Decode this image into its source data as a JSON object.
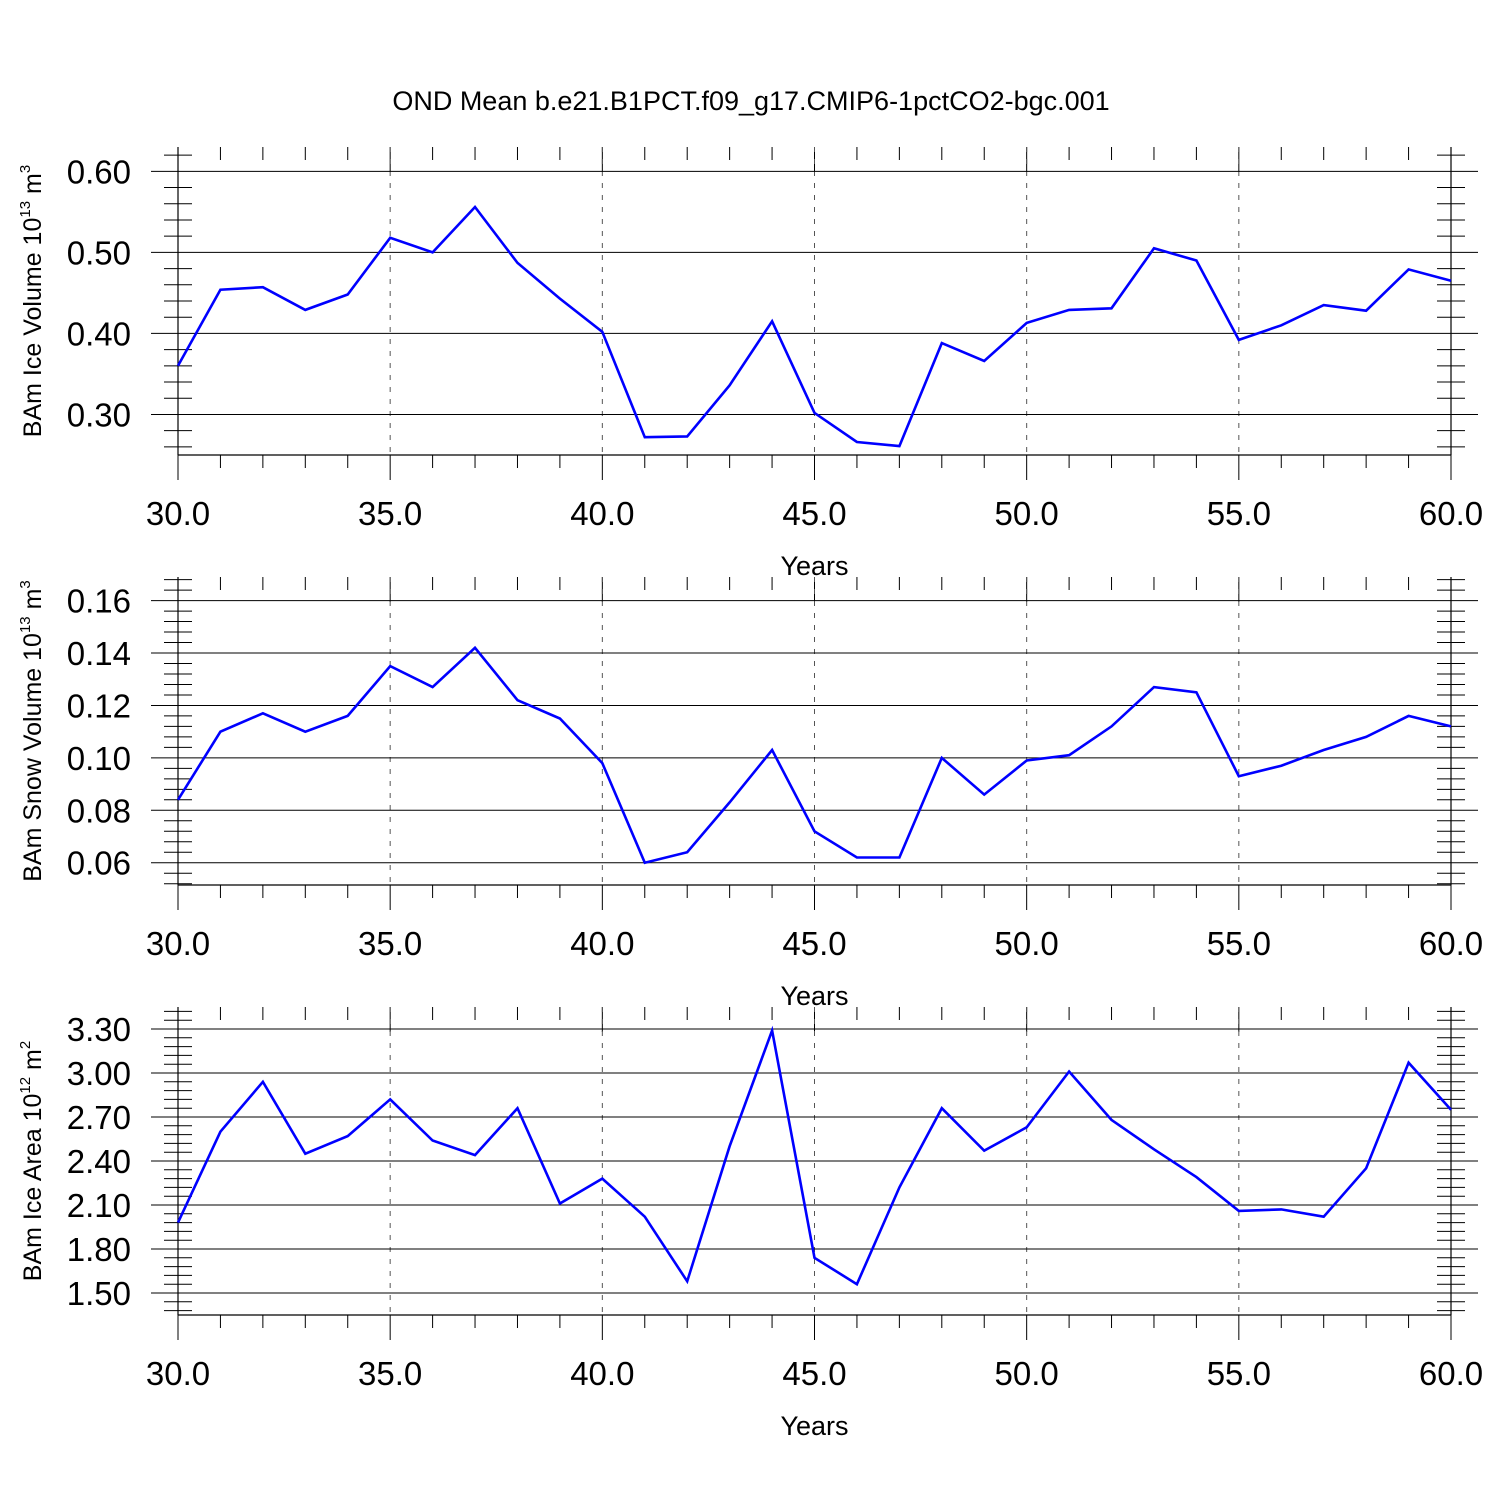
{
  "title": "OND Mean b.e21.B1PCT.f09_g17.CMIP6-1pctCO2-bgc.001",
  "line_color": "#0000ff",
  "chart_data": [
    {
      "type": "line",
      "ylabel": {
        "main": "BAm Ice Volume 10",
        "exp": "13",
        "unit": " m",
        "unit_exp": "3"
      },
      "xlabel": "Years",
      "xlim": [
        30,
        60
      ],
      "ylim": [
        0.25,
        0.63
      ],
      "x_ticks": [
        "30.0",
        "35.0",
        "40.0",
        "45.0",
        "50.0",
        "55.0",
        "60.0"
      ],
      "y_ticks": [
        "0.30",
        "0.40",
        "0.50",
        "0.60"
      ],
      "grid": "vertical dashed at major x ticks",
      "series": [
        {
          "x": [
            30,
            31,
            32,
            33,
            34,
            35,
            36,
            37,
            38,
            39,
            40,
            41,
            42,
            43,
            44,
            45,
            46,
            47,
            48,
            49,
            50,
            51,
            52,
            53,
            54,
            55,
            56,
            57,
            58,
            59,
            60
          ],
          "values": [
            0.36,
            0.454,
            0.457,
            0.429,
            0.448,
            0.518,
            0.5,
            0.556,
            0.487,
            0.443,
            0.402,
            0.272,
            0.273,
            0.336,
            0.415,
            0.302,
            0.266,
            0.261,
            0.388,
            0.366,
            0.413,
            0.429,
            0.431,
            0.505,
            0.49,
            0.392,
            0.41,
            0.435,
            0.428,
            0.479,
            0.465
          ]
        }
      ]
    },
    {
      "type": "line",
      "ylabel": {
        "main": "BAm Snow Volume 10",
        "exp": "13",
        "unit": " m",
        "unit_exp": "3"
      },
      "xlabel": "Years",
      "xlim": [
        30,
        60
      ],
      "ylim": [
        0.0515,
        0.169
      ],
      "x_ticks": [
        "30.0",
        "35.0",
        "40.0",
        "45.0",
        "50.0",
        "55.0",
        "60.0"
      ],
      "y_ticks": [
        "0.06",
        "0.08",
        "0.10",
        "0.12",
        "0.14",
        "0.16"
      ],
      "grid": "vertical dashed at major x ticks",
      "series": [
        {
          "x": [
            30,
            31,
            32,
            33,
            34,
            35,
            36,
            37,
            38,
            39,
            40,
            41,
            42,
            43,
            44,
            45,
            46,
            47,
            48,
            49,
            50,
            51,
            52,
            53,
            54,
            55,
            56,
            57,
            58,
            59,
            60
          ],
          "values": [
            0.084,
            0.11,
            0.117,
            0.11,
            0.116,
            0.135,
            0.127,
            0.142,
            0.122,
            0.115,
            0.098,
            0.06,
            0.064,
            0.083,
            0.103,
            0.072,
            0.062,
            0.062,
            0.1,
            0.086,
            0.099,
            0.101,
            0.112,
            0.127,
            0.125,
            0.093,
            0.097,
            0.103,
            0.108,
            0.116,
            0.112
          ]
        }
      ]
    },
    {
      "type": "line",
      "ylabel": {
        "main": "BAm Ice Area 10",
        "exp": "12",
        "unit": " m",
        "unit_exp": "2"
      },
      "xlabel": "Years",
      "xlim": [
        30,
        60
      ],
      "ylim": [
        1.35,
        3.45
      ],
      "x_ticks": [
        "30.0",
        "35.0",
        "40.0",
        "45.0",
        "50.0",
        "55.0",
        "60.0"
      ],
      "y_ticks": [
        "1.50",
        "1.80",
        "2.10",
        "2.40",
        "2.70",
        "3.00",
        "3.30"
      ],
      "grid": "vertical dashed at major x ticks",
      "series": [
        {
          "x": [
            30,
            31,
            32,
            33,
            34,
            35,
            36,
            37,
            38,
            39,
            40,
            41,
            42,
            43,
            44,
            45,
            46,
            47,
            48,
            49,
            50,
            51,
            52,
            53,
            54,
            55,
            56,
            57,
            58,
            59,
            60
          ],
          "values": [
            1.98,
            2.6,
            2.94,
            2.45,
            2.57,
            2.82,
            2.54,
            2.44,
            2.76,
            2.11,
            2.28,
            2.02,
            1.58,
            2.5,
            3.29,
            1.74,
            1.56,
            2.22,
            2.76,
            2.47,
            2.63,
            3.01,
            2.68,
            2.48,
            2.29,
            2.06,
            2.07,
            2.02,
            2.35,
            3.07,
            2.75
          ]
        }
      ]
    }
  ]
}
